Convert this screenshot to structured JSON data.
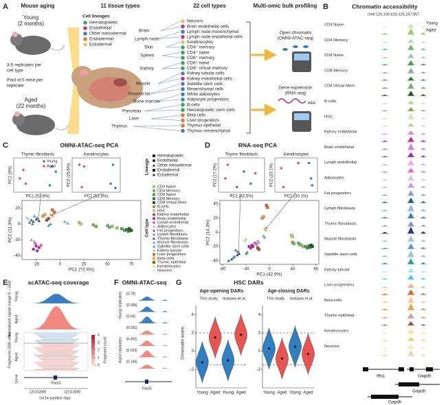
{
  "letters": [
    "A",
    "B",
    "C",
    "D",
    "E",
    "F",
    "G"
  ],
  "panel_a": {
    "headers": [
      "Mouse aging",
      "11 tissue types",
      "22 cell types",
      "Multi-omic bulk profiling"
    ],
    "young": "Young",
    "young_age": "(2 months)",
    "aged": "Aged",
    "aged_age": "(22 months)",
    "replicates": [
      "3-5 replicates per",
      "cell type"
    ],
    "pool": [
      "Pool of 5 mice per",
      "replicate"
    ],
    "lineage_title": "Cell lineages",
    "lineages": [
      {
        "name": "Hematopoietic",
        "color": "#3aa35c"
      },
      {
        "name": "Endothelial",
        "color": "#c4338f"
      },
      {
        "name": "Other mesodermal",
        "color": "#3f7fc4"
      },
      {
        "name": "Endodermal",
        "color": "#e8763a"
      },
      {
        "name": "Ectodermal",
        "color": "#f0c05a"
      }
    ],
    "tissues": [
      "Brain",
      "Lymph node",
      "Skin",
      "Spleen",
      "Kidney",
      "Muscle",
      "Visceral fat",
      "Bone marrow",
      "Pancreas",
      "Liver",
      "Thymus"
    ],
    "cell_types": [
      {
        "name": "Neurons",
        "lineage": "Ectodermal"
      },
      {
        "name": "Brain endothelial cells",
        "lineage": "Endothelial"
      },
      {
        "name": "Lymph node mesenchymal",
        "lineage": "Other mesodermal"
      },
      {
        "name": "Lymph node endothelial cells",
        "lineage": "Endothelial"
      },
      {
        "name": "Keratinocytes",
        "lineage": "Ectodermal"
      },
      {
        "name": "CD4⁺ memory",
        "lineage": "Hematopoietic"
      },
      {
        "name": "CD4⁺ naive",
        "lineage": "Hematopoietic"
      },
      {
        "name": "CD8⁺ memory",
        "lineage": "Hematopoietic"
      },
      {
        "name": "CD8⁺ naive",
        "lineage": "Hematopoietic"
      },
      {
        "name": "CD8⁺ virtual memory",
        "lineage": "Hematopoietic"
      },
      {
        "name": "Kidney tubular cells",
        "lineage": "Other mesodermal"
      },
      {
        "name": "Kidney endothelial cells",
        "lineage": "Endothelial"
      },
      {
        "name": "Satellite stem cells",
        "lineage": "Other mesodermal"
      },
      {
        "name": "Mesenchymal cells",
        "lineage": "Other mesodermal"
      },
      {
        "name": "White adipocytes",
        "lineage": "Other mesodermal"
      },
      {
        "name": "Adipocyte progenitors",
        "lineage": "Other mesodermal"
      },
      {
        "name": "B-cells",
        "lineage": "Hematopoietic"
      },
      {
        "name": "Hematopoietic stem cells",
        "lineage": "Hematopoietic"
      },
      {
        "name": "Beta cells",
        "lineage": "Endodermal"
      },
      {
        "name": "Liver progenitors",
        "lineage": "Endodermal"
      },
      {
        "name": "Thymus epithelial",
        "lineage": "Endodermal"
      },
      {
        "name": "Thymus mesenchymal",
        "lineage": "Other mesodermal"
      }
    ],
    "atac": [
      "Open chromatin",
      "(OMNI-ATAC-seq)"
    ],
    "rna": [
      "Gene expression",
      "(RNA-seq)"
    ],
    "polya": "AAA"
  },
  "panel_b": {
    "title": "Chromatin accessibility",
    "coord": "chr6:125,160,615-125,167,957",
    "young": "Young",
    "aged": "Aged",
    "tracks": [
      {
        "name": "CD4 Naive",
        "color": "#9ccc65"
      },
      {
        "name": "CD4 Memory",
        "color": "#66bb6a"
      },
      {
        "name": "CD8 Naive",
        "color": "#43a047"
      },
      {
        "name": "CD8 Memory",
        "color": "#2e7d32"
      },
      {
        "name": "CD8 Virtual Mem.",
        "color": "#1b5e20"
      },
      {
        "name": "B-cells",
        "color": "#7cb342"
      },
      {
        "name": "HSC",
        "color": "#aed581"
      },
      {
        "name": "Kidney endothelial",
        "color": "#d81b8a"
      },
      {
        "name": "Brain endothelial",
        "color": "#9c27b0"
      },
      {
        "name": "Lymph endothelial",
        "color": "#e565c4"
      },
      {
        "name": "Adipocytes",
        "color": "#c39be0"
      },
      {
        "name": "Fat progenitors",
        "color": "#1f5aa6"
      },
      {
        "name": "Lymph fibroblasts",
        "color": "#3f7fc4"
      },
      {
        "name": "Thymic fibroblasts",
        "color": "#283593"
      },
      {
        "name": "Muscle fibroblasts",
        "color": "#5e8fd0"
      },
      {
        "name": "Satellite stem cells",
        "color": "#26a69a"
      },
      {
        "name": "Kidney tubular",
        "color": "#4fc3f7"
      },
      {
        "name": "Liver progenitors",
        "color": "#e8632a"
      },
      {
        "name": "Beta-cells",
        "color": "#f39c4a"
      },
      {
        "name": "Thymic epithelial",
        "color": "#a0522d"
      },
      {
        "name": "Keratinocytes",
        "color": "#f2c94c"
      },
      {
        "name": "Neurons",
        "color": "#e8d9a8"
      }
    ],
    "genes": [
      "Iffo1",
      "Gapdh",
      "Gapdh",
      "Gapdh"
    ]
  },
  "panel_c": {
    "title": "OMNI-ATAC-seq PCA",
    "x_label": "PC1 (72.4%)",
    "y_label": "PC2 (11.3%)",
    "xlim": [
      -40,
      85
    ],
    "ylim": [
      -45,
      30
    ],
    "xticks": [
      -25,
      0,
      25,
      50,
      75
    ],
    "yticks": [
      -40,
      -20,
      0,
      20
    ],
    "lineage_title": "Lineage",
    "celltype_title": "Cell type",
    "lineages": [
      {
        "name": "Hematopoietic",
        "shape": "square"
      },
      {
        "name": "Endothelial",
        "shape": "circle"
      },
      {
        "name": "Other mesodermal",
        "shape": "triangle"
      },
      {
        "name": "Endodermal",
        "shape": "square"
      },
      {
        "name": "Ectodermal",
        "shape": "diamond"
      }
    ],
    "cell_types": [
      {
        "name": "CD4 Naive",
        "lineage": "Hematopoietic",
        "color": "#9ccc65",
        "x": [
          55,
          60
        ],
        "y": [
          -3,
          -5
        ]
      },
      {
        "name": "CD4 Memory",
        "lineage": "Hematopoietic",
        "color": "#66bb6a",
        "x": [
          50,
          52
        ],
        "y": [
          -2,
          -4
        ]
      },
      {
        "name": "CD8 Naive",
        "lineage": "Hematopoietic",
        "color": "#43a047",
        "x": [
          65,
          68
        ],
        "y": [
          -6,
          -8
        ]
      },
      {
        "name": "CD8 Memory",
        "lineage": "Hematopoietic",
        "color": "#2e7d32",
        "x": [
          70,
          72
        ],
        "y": [
          -7,
          -9
        ]
      },
      {
        "name": "CD8 Virtual Mem.",
        "lineage": "Hematopoietic",
        "color": "#1b5e20",
        "x": [
          75,
          73
        ],
        "y": [
          -8,
          -6
        ]
      },
      {
        "name": "B-cells",
        "lineage": "Hematopoietic",
        "color": "#7cb342",
        "x": [
          35,
          38
        ],
        "y": [
          -1,
          -3
        ]
      },
      {
        "name": "HSC",
        "lineage": "Hematopoietic",
        "color": "#aed581",
        "x": [
          20,
          22
        ],
        "y": [
          2,
          0
        ]
      },
      {
        "name": "Kidney endothelial",
        "lineage": "Endothelial",
        "color": "#d81b8a",
        "x": [
          -25,
          -22
        ],
        "y": [
          -28,
          -30
        ]
      },
      {
        "name": "Brain endothelial",
        "lineage": "Endothelial",
        "color": "#9c27b0",
        "x": [
          -28,
          -24
        ],
        "y": [
          -32,
          -34
        ]
      },
      {
        "name": "Lymph endothelial",
        "lineage": "Endothelial",
        "color": "#e565c4",
        "x": [
          -26,
          -20
        ],
        "y": [
          -25,
          -27
        ]
      },
      {
        "name": "Adipocytes",
        "lineage": "Other mesodermal",
        "color": "#c39be0",
        "x": [
          -30,
          -27
        ],
        "y": [
          -20,
          -22
        ]
      },
      {
        "name": "Fat progenitors",
        "lineage": "Other mesodermal",
        "color": "#1f5aa6",
        "x": [
          -30,
          -28
        ],
        "y": [
          5,
          3
        ]
      },
      {
        "name": "Lymph fibroblasts",
        "lineage": "Other mesodermal",
        "color": "#3f7fc4",
        "x": [
          -32,
          -29
        ],
        "y": [
          2,
          0
        ]
      },
      {
        "name": "Thymic fibroblasts",
        "lineage": "Other mesodermal",
        "color": "#283593",
        "x": [
          -25,
          -22
        ],
        "y": [
          6,
          4
        ]
      },
      {
        "name": "Muscle fibroblasts",
        "lineage": "Other mesodermal",
        "color": "#5e8fd0",
        "x": [
          -27,
          -24
        ],
        "y": [
          10,
          8
        ]
      },
      {
        "name": "Satellite stem cells",
        "lineage": "Other mesodermal",
        "color": "#26a69a",
        "x": [
          -12,
          -10
        ],
        "y": [
          -2,
          0
        ]
      },
      {
        "name": "Kidney tubular",
        "lineage": "Other mesodermal",
        "color": "#4fc3f7",
        "x": [
          5,
          8
        ],
        "y": [
          3,
          1
        ]
      },
      {
        "name": "Liver progenitors",
        "lineage": "Endodermal",
        "color": "#e8632a",
        "x": [
          -8,
          -6
        ],
        "y": [
          18,
          15
        ]
      },
      {
        "name": "Beta-cells",
        "lineage": "Endodermal",
        "color": "#f39c4a",
        "x": [
          -18,
          -16
        ],
        "y": [
          10,
          12
        ]
      },
      {
        "name": "Thymic epithelial",
        "lineage": "Endodermal",
        "color": "#a0522d",
        "x": [
          -14,
          -12
        ],
        "y": [
          5,
          7
        ]
      },
      {
        "name": "Keratinocytes",
        "lineage": "Ectodermal",
        "color": "#f2c94c",
        "x": [
          -10,
          -8
        ],
        "y": [
          12,
          10
        ]
      },
      {
        "name": "Neurons",
        "lineage": "Ectodermal",
        "color": "#e8d9a8",
        "x": [
          -35,
          -33
        ],
        "y": [
          8,
          6
        ]
      }
    ],
    "young_label": "Young",
    "aged_label": "Aged",
    "young_color": "#3a7ec2",
    "aged_color": "#e8544f",
    "insets": [
      {
        "title": "Thymic fibroblasts",
        "x_label": "PC1 (52.8%)",
        "y_label": "PC2 (3%)",
        "xlim": [
          -1,
          1
        ],
        "ylim": [
          -1,
          1
        ],
        "young": {
          "x": [
            0.6,
            0.75,
            0.5
          ],
          "y": [
            0.5,
            0.2,
            -0.6
          ]
        },
        "aged": {
          "x": [
            -0.6,
            -0.75,
            -0.5
          ],
          "y": [
            0.3,
            -0.2,
            -0.5
          ]
        }
      },
      {
        "title": "Keratinocytes",
        "x_label": "PC1 (52.8%)",
        "y_label": "PC2 (25.6%)",
        "xlim": [
          -1,
          1
        ],
        "ylim": [
          -1,
          1
        ],
        "young": {
          "x": [
            0.6,
            0.8,
            0.7
          ],
          "y": [
            -0.5,
            -0.75,
            0.6
          ]
        },
        "aged": {
          "x": [
            -0.7,
            -0.5,
            -0.6
          ],
          "y": [
            0.6,
            0.5,
            -0.7
          ]
        }
      }
    ]
  },
  "panel_d": {
    "title": "RNA-seq PCA",
    "x_label": "PC1 (42.9%)",
    "y_label": "PC2 (14.3%)",
    "xlim": [
      -85,
      85
    ],
    "ylim": [
      -45,
      45
    ],
    "xticks": [
      -80,
      -40,
      0,
      40,
      80
    ],
    "yticks": [
      -40,
      -20,
      0,
      20,
      40
    ],
    "points": [
      {
        "x": [
          55,
          58
        ],
        "y": [
          -18,
          -20
        ]
      },
      {
        "x": [
          50,
          52
        ],
        "y": [
          -15,
          -17
        ]
      },
      {
        "x": [
          62,
          65
        ],
        "y": [
          -20,
          -22
        ]
      },
      {
        "x": [
          68,
          70
        ],
        "y": [
          -19,
          -21
        ]
      },
      {
        "x": [
          72,
          74
        ],
        "y": [
          -18,
          -20
        ]
      },
      {
        "x": [
          40,
          42
        ],
        "y": [
          -14,
          -16
        ]
      },
      {
        "x": [
          38,
          40
        ],
        "y": [
          -4,
          -6
        ]
      },
      {
        "x": [
          -35,
          -32
        ],
        "y": [
          -20,
          -22
        ]
      },
      {
        "x": [
          -30,
          -28
        ],
        "y": [
          -18,
          -20
        ]
      },
      {
        "x": [
          -25,
          -22
        ],
        "y": [
          -15,
          -17
        ]
      },
      {
        "x": [
          -20,
          -18
        ],
        "y": [
          -12,
          -14
        ]
      },
      {
        "x": [
          -70,
          -65
        ],
        "y": [
          -40,
          -38
        ]
      },
      {
        "x": [
          -62,
          -60
        ],
        "y": [
          -36,
          -34
        ]
      },
      {
        "x": [
          -55,
          -52
        ],
        "y": [
          -32,
          -30
        ]
      },
      {
        "x": [
          -58,
          -55
        ],
        "y": [
          -25,
          -27
        ]
      },
      {
        "x": [
          -40,
          -38
        ],
        "y": [
          -30,
          -28
        ]
      },
      {
        "x": [
          -10,
          -8
        ],
        "y": [
          -5,
          -7
        ]
      },
      {
        "x": [
          -5,
          -3
        ],
        "y": [
          38,
          35
        ]
      },
      {
        "x": [
          -12,
          -10
        ],
        "y": [
          20,
          22
        ]
      },
      {
        "x": [
          -20,
          -18
        ],
        "y": [
          -22,
          -24
        ]
      },
      {
        "x": [
          -8,
          -6
        ],
        "y": [
          5,
          3
        ]
      },
      {
        "x": [
          -40,
          -42
        ],
        "y": [
          -10,
          -12
        ]
      }
    ],
    "insets": [
      {
        "title": "Thymic fibroblasts",
        "x_label": "PC1 (42.5%)",
        "y_label": "PC2 (17.2%)",
        "xlim": [
          -1,
          1
        ],
        "ylim": [
          -1,
          1
        ],
        "young": {
          "x": [
            -0.2,
            0.1,
            0.4
          ],
          "y": [
            -0.7,
            0.2,
            -0.5
          ]
        },
        "aged": {
          "x": [
            -0.6,
            -0.7,
            0.6
          ],
          "y": [
            0.6,
            -0.2,
            0.1
          ]
        }
      },
      {
        "title": "Keratinocytes",
        "x_label": "PC1 (30.1%)",
        "y_label": "PC2 (23.1%)",
        "xlim": [
          -1,
          1
        ],
        "ylim": [
          -1,
          1
        ],
        "young": {
          "x": [
            0.6,
            0.7,
            0.75
          ],
          "y": [
            0.7,
            -0.2,
            -0.6
          ]
        },
        "aged": {
          "x": [
            -0.7,
            -0.6,
            0.1
          ],
          "y": [
            0.4,
            -0.7,
            0.7
          ]
        }
      }
    ]
  },
  "panel_e": {
    "title": "scATAC-seq coverage",
    "signal_label": "Normalized signal (range 0 – 250)",
    "fragments_label": "Fragments (200 cells)",
    "young": "Young",
    "aged": "Aged",
    "count_label": "Fragment count",
    "count_ticks": [
      0,
      1,
      2,
      3,
      4
    ],
    "gene_label": "Gene",
    "gene": "Farp1",
    "x_ticks": [
      "121102000",
      "121113000"
    ],
    "x_label": "chr14 position (bp)"
  },
  "panel_f": {
    "title": "OMNI-ATAC-seq",
    "ranges": [
      "[0-78]",
      "[0-305]",
      "[0-69]",
      "[0-291]",
      "[0-451]",
      "[0-323]",
      "[0-166]"
    ],
    "young_group": "Young replicates",
    "aged_group": "Aged replicates",
    "gene": "Farp1"
  },
  "panel_g": {
    "title": "HSC DARs",
    "y_label": "Chromatin score",
    "ylim": [
      -4,
      5
    ],
    "yticks": [
      -2,
      0,
      2,
      4
    ],
    "reference_lines": [
      2,
      -1.5
    ],
    "groups": [
      "Young",
      "Aged"
    ],
    "group_colors": [
      "#2f7fc1",
      "#e8544f"
    ],
    "subplots": [
      {
        "title": "Age-opening DARs",
        "studies": [
          {
            "name": "This study",
            "medians": [
              -1.2,
              1.5
            ]
          },
          {
            "name": "Itokawa et al.",
            "medians": [
              -1,
              1.8
            ]
          }
        ]
      },
      {
        "title": "Age-closing DARs",
        "studies": [
          {
            "name": "This study",
            "medians": [
              0.3,
              -0.8
            ]
          },
          {
            "name": "Itokawa et al.",
            "medians": [
              0.5,
              -0.3
            ]
          }
        ]
      }
    ]
  }
}
